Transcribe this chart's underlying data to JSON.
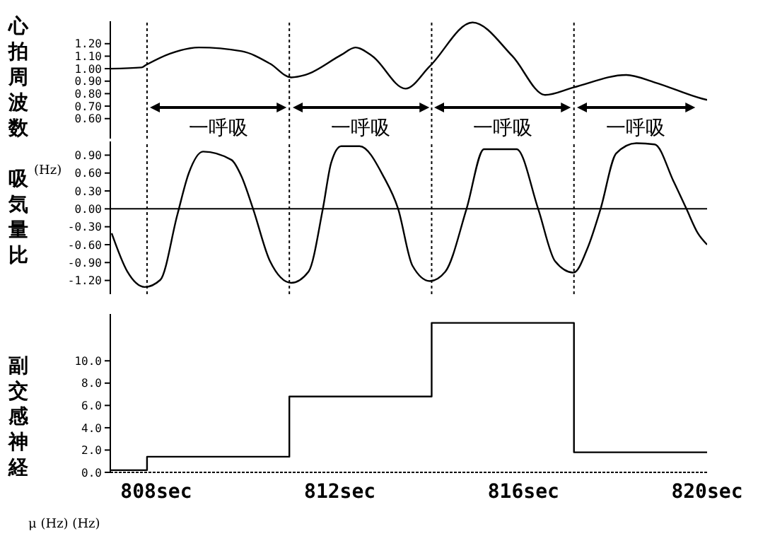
{
  "chart_data": [
    {
      "type": "line",
      "ylabel": "心拍周波数",
      "xlim": [
        807.0,
        820.0
      ],
      "ylim": [
        0.44,
        1.38
      ],
      "yticks": [
        {
          "value": 0.6,
          "label": "0.60"
        },
        {
          "value": 0.7,
          "label": "0.70"
        },
        {
          "value": 0.8,
          "label": "0.80"
        },
        {
          "value": 0.9,
          "label": "0.90"
        },
        {
          "value": 1.0,
          "label": "1.00"
        },
        {
          "value": 1.1,
          "label": "1.10"
        },
        {
          "value": 1.2,
          "label": "1.20"
        }
      ],
      "tick_labels": "y",
      "marker": "none",
      "line_style": "solid",
      "x": [
        807.0,
        807.68,
        807.78,
        808.3,
        808.93,
        809.86,
        810.48,
        810.94,
        811.25,
        812.03,
        812.34,
        812.71,
        813.43,
        813.96,
        814.89,
        815.76,
        816.47,
        817.09,
        818.24,
        818.86,
        819.89,
        820.0
      ],
      "series": [
        {
          "color": "#000000",
          "values": [
            1.0,
            1.01,
            1.03,
            1.12,
            1.17,
            1.14,
            1.04,
            0.93,
            0.95,
            1.11,
            1.17,
            1.1,
            0.84,
            1.02,
            1.37,
            1.1,
            0.79,
            0.85,
            0.95,
            0.89,
            0.76,
            0.75
          ]
        }
      ],
      "ref_lines": [
        {
          "axis": "x",
          "value": 807.8,
          "line_style": "dotted",
          "color": "#000000"
        },
        {
          "axis": "x",
          "value": 810.9,
          "line_style": "dotted",
          "color": "#000000"
        },
        {
          "axis": "x",
          "value": 814.0,
          "line_style": "dotted",
          "color": "#000000"
        },
        {
          "axis": "x",
          "value": 817.1,
          "line_style": "dotted",
          "color": "#000000"
        }
      ],
      "annotations": [
        "一呼吸",
        "一呼吸",
        "一呼吸",
        "一呼吸"
      ]
    },
    {
      "type": "line",
      "ylabel": "吸気量比",
      "xlim": [
        807.0,
        820.0
      ],
      "ylim": [
        -1.43,
        1.13
      ],
      "yticks": [
        {
          "value": -1.2,
          "label": "-1.20"
        },
        {
          "value": -0.9,
          "label": "-0.90"
        },
        {
          "value": -0.6,
          "label": "-0.60"
        },
        {
          "value": -0.3,
          "label": "-0.30"
        },
        {
          "value": 0,
          "label": "0.00"
        },
        {
          "value": 0.3,
          "label": "0.30"
        },
        {
          "value": 0.6,
          "label": "0.60"
        },
        {
          "value": 0.9,
          "label": "0.90"
        }
      ],
      "tick_labels": "y",
      "marker": "none",
      "line_style": "solid",
      "x": [
        807.03,
        807.37,
        807.75,
        808.09,
        808.46,
        808.71,
        809.02,
        809.64,
        809.86,
        810.11,
        810.48,
        810.94,
        811.32,
        811.63,
        811.81,
        812.03,
        812.43,
        812.96,
        813.27,
        813.58,
        813.96,
        814.3,
        814.76,
        815.14,
        815.85,
        816.32,
        816.69,
        817.09,
        817.4,
        817.68,
        818.02,
        818.46,
        818.86,
        819.27,
        819.55,
        819.8,
        820.0
      ],
      "series": [
        {
          "color": "#000000",
          "values": [
            -0.41,
            -1.05,
            -1.31,
            -1.19,
            -0.1,
            0.6,
            0.96,
            0.82,
            0.54,
            0.0,
            -0.88,
            -1.24,
            -1.05,
            0.0,
            0.77,
            1.05,
            1.05,
            0.53,
            0.0,
            -0.95,
            -1.21,
            -1.05,
            0.0,
            1.0,
            1.0,
            0.0,
            -0.88,
            -1.07,
            -0.65,
            0.0,
            0.93,
            1.1,
            1.08,
            0.46,
            0.0,
            -0.41,
            -0.6
          ]
        }
      ],
      "ref_lines": [
        {
          "axis": "y",
          "value": 0,
          "line_style": "solid",
          "color": "#000000"
        },
        {
          "axis": "x",
          "value": 807.8,
          "line_style": "dotted",
          "color": "#000000"
        },
        {
          "axis": "x",
          "value": 810.9,
          "line_style": "dotted",
          "color": "#000000"
        },
        {
          "axis": "x",
          "value": 814.0,
          "line_style": "dotted",
          "color": "#000000"
        },
        {
          "axis": "x",
          "value": 817.1,
          "line_style": "dotted",
          "color": "#000000"
        }
      ],
      "annotations": [
        "(Hz)"
      ]
    },
    {
      "type": "step",
      "ylabel": "副交感神経",
      "xlim": [
        807.0,
        820.0
      ],
      "xticks": [
        {
          "value": 808,
          "label": "808sec"
        },
        {
          "value": 812,
          "label": "812sec"
        },
        {
          "value": 816,
          "label": "816sec"
        },
        {
          "value": 820,
          "label": "820sec"
        }
      ],
      "ylim": [
        0,
        14.2
      ],
      "yticks": [
        {
          "value": 0,
          "label": "0.0"
        },
        {
          "value": 2,
          "label": "2.0"
        },
        {
          "value": 4,
          "label": "4.0"
        },
        {
          "value": 6,
          "label": "6.0"
        },
        {
          "value": 8,
          "label": "8.0"
        },
        {
          "value": 10,
          "label": "10.0"
        }
      ],
      "marker": "none",
      "line_style": "solid",
      "x": [
        807.0,
        807.8,
        810.9,
        814.0,
        817.1,
        820.0
      ],
      "series": [
        {
          "color": "#000000",
          "values": [
            0.2,
            1.4,
            6.8,
            13.4,
            1.8,
            1.8
          ]
        }
      ],
      "annotations": [
        "μ (Hz) (Hz)"
      ]
    }
  ]
}
